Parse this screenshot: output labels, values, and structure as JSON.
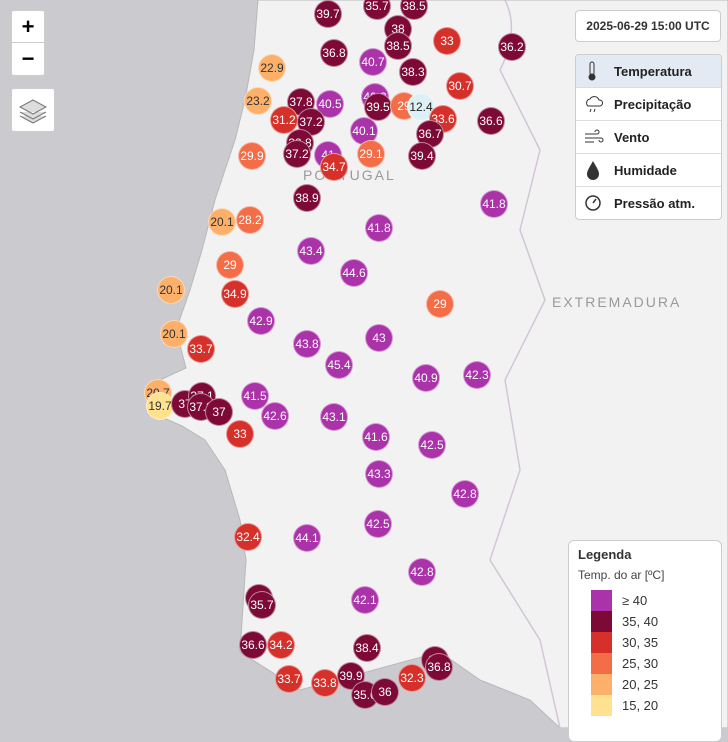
{
  "timestamp": "2025-06-29 15:00 UTC",
  "zoom": {
    "in": "+",
    "out": "−"
  },
  "layers": [
    "Temperatura",
    "Precipitação",
    "Vento",
    "Humidade",
    "Pressão atm."
  ],
  "legend": {
    "title": "Legenda",
    "subtitle": "Temp. do ar [ºC]",
    "items": [
      {
        "min": 40,
        "label": "≥ 40",
        "color": "#aa33aa"
      },
      {
        "min": 35,
        "label": "35, 40",
        "color": "#7d0a36"
      },
      {
        "min": 30,
        "label": "30, 35",
        "color": "#d5302a"
      },
      {
        "min": 25,
        "label": "25, 30",
        "color": "#f26d48"
      },
      {
        "min": 20,
        "label": "20, 25",
        "color": "#fdb06a"
      },
      {
        "min": 15,
        "label": "15, 20",
        "color": "#fee290"
      }
    ]
  },
  "labels": [
    "PORTUGAL",
    "EXTREMADURA"
  ],
  "stations": [
    39.7,
    35.7,
    38.5,
    38,
    33,
    36.2,
    36.8,
    38.5,
    40.7,
    38.3,
    22.9,
    30.7,
    23.2,
    37.8,
    40.5,
    40.3,
    39.5,
    29,
    12.4,
    31.2,
    37.2,
    33.6,
    36.6,
    40.1,
    36.7,
    29.9,
    38.8,
    37.2,
    41,
    34.7,
    29.1,
    39.4,
    38.9,
    41.8,
    20.1,
    28.2,
    41.8,
    43.4,
    29,
    44.6,
    20.1,
    34.9,
    29,
    42.9,
    20.1,
    33.7,
    43.8,
    43,
    45.4,
    40.9,
    42.3,
    20.7,
    19.7,
    37,
    37.1,
    37.2,
    37,
    41.5,
    42.6,
    43.1,
    33,
    41.6,
    42.5,
    43.3,
    42.8,
    42.5,
    32.4,
    44.1,
    42.8,
    37,
    35.7,
    42.1,
    36.6,
    34.2,
    38.4,
    36,
    36.8,
    33.7,
    33.8,
    39.9,
    32.3,
    35.6,
    36
  ]
}
